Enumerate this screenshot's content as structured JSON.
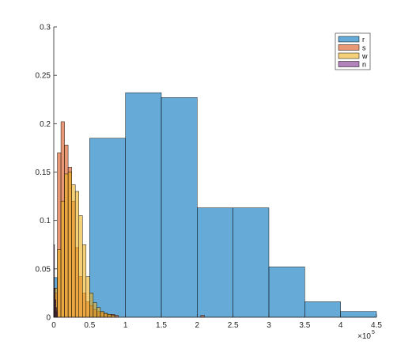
{
  "chart_data": {
    "type": "bar",
    "title": "",
    "xlabel": "",
    "ylabel": "",
    "x_exponent": {
      "base": "×10",
      "power": "5"
    },
    "xlim": [
      0,
      450000
    ],
    "ylim": [
      0,
      0.3
    ],
    "x_ticks": [
      "0",
      "0.5",
      "1",
      "1.5",
      "2",
      "2.5",
      "3",
      "3.5",
      "4",
      "4.5"
    ],
    "y_ticks": [
      "0",
      "0.05",
      "0.1",
      "0.15",
      "0.2",
      "0.25",
      "0.3"
    ],
    "legend_position": "top-right",
    "series": [
      {
        "name": "r",
        "color": "#0072BD",
        "bins": [
          {
            "x0": 0,
            "x1": 5000,
            "y": 0.041
          },
          {
            "x0": 50000,
            "x1": 100000,
            "y": 0.185
          },
          {
            "x0": 100000,
            "x1": 150000,
            "y": 0.232
          },
          {
            "x0": 150000,
            "x1": 200000,
            "y": 0.227
          },
          {
            "x0": 200000,
            "x1": 250000,
            "y": 0.113
          },
          {
            "x0": 250000,
            "x1": 300000,
            "y": 0.113
          },
          {
            "x0": 300000,
            "x1": 350000,
            "y": 0.052
          },
          {
            "x0": 350000,
            "x1": 400000,
            "y": 0.016
          },
          {
            "x0": 400000,
            "x1": 450000,
            "y": 0.006
          }
        ]
      },
      {
        "name": "s",
        "color": "#D95319",
        "bins": [
          {
            "x0": 0,
            "x1": 5000,
            "y": 0.025
          },
          {
            "x0": 5000,
            "x1": 10000,
            "y": 0.17
          },
          {
            "x0": 10000,
            "x1": 15000,
            "y": 0.202
          },
          {
            "x0": 15000,
            "x1": 20000,
            "y": 0.178
          },
          {
            "x0": 20000,
            "x1": 25000,
            "y": 0.155
          },
          {
            "x0": 25000,
            "x1": 30000,
            "y": 0.12
          },
          {
            "x0": 30000,
            "x1": 35000,
            "y": 0.072
          },
          {
            "x0": 35000,
            "x1": 40000,
            "y": 0.042
          },
          {
            "x0": 40000,
            "x1": 45000,
            "y": 0.025
          },
          {
            "x0": 45000,
            "x1": 50000,
            "y": 0.016
          },
          {
            "x0": 50000,
            "x1": 55000,
            "y": 0.012
          },
          {
            "x0": 55000,
            "x1": 60000,
            "y": 0.008
          },
          {
            "x0": 60000,
            "x1": 65000,
            "y": 0.006
          },
          {
            "x0": 65000,
            "x1": 70000,
            "y": 0.005
          },
          {
            "x0": 70000,
            "x1": 75000,
            "y": 0.004
          },
          {
            "x0": 75000,
            "x1": 80000,
            "y": 0.003
          },
          {
            "x0": 80000,
            "x1": 85000,
            "y": 0.003
          },
          {
            "x0": 85000,
            "x1": 90000,
            "y": 0.002
          },
          {
            "x0": 205000,
            "x1": 210000,
            "y": 0.002
          }
        ]
      },
      {
        "name": "w",
        "color": "#EDB120",
        "bins": [
          {
            "x0": 0,
            "x1": 5000,
            "y": 0.03
          },
          {
            "x0": 5000,
            "x1": 10000,
            "y": 0.07
          },
          {
            "x0": 10000,
            "x1": 15000,
            "y": 0.12
          },
          {
            "x0": 15000,
            "x1": 20000,
            "y": 0.148
          },
          {
            "x0": 20000,
            "x1": 25000,
            "y": 0.15
          },
          {
            "x0": 25000,
            "x1": 30000,
            "y": 0.137
          },
          {
            "x0": 30000,
            "x1": 35000,
            "y": 0.13
          },
          {
            "x0": 35000,
            "x1": 40000,
            "y": 0.105
          },
          {
            "x0": 40000,
            "x1": 45000,
            "y": 0.075
          },
          {
            "x0": 45000,
            "x1": 50000,
            "y": 0.042
          },
          {
            "x0": 50000,
            "x1": 55000,
            "y": 0.025
          },
          {
            "x0": 55000,
            "x1": 60000,
            "y": 0.015
          },
          {
            "x0": 60000,
            "x1": 65000,
            "y": 0.01
          },
          {
            "x0": 65000,
            "x1": 70000,
            "y": 0.006
          },
          {
            "x0": 70000,
            "x1": 75000,
            "y": 0.004
          },
          {
            "x0": 75000,
            "x1": 80000,
            "y": 0.003
          },
          {
            "x0": 80000,
            "x1": 85000,
            "y": 0.002
          }
        ]
      },
      {
        "name": "n",
        "color": "#7E2F8E",
        "bins": [
          {
            "x0": 0,
            "x1": 1000,
            "y": 0.075
          },
          {
            "x0": 1000,
            "x1": 2000,
            "y": 0.03
          },
          {
            "x0": 2000,
            "x1": 3000,
            "y": 0.018
          },
          {
            "x0": 3000,
            "x1": 4000,
            "y": 0.01
          },
          {
            "x0": 4000,
            "x1": 5000,
            "y": 0.006
          }
        ]
      }
    ]
  }
}
